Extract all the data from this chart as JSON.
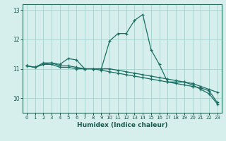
{
  "xlabel": "Humidex (Indice chaleur)",
  "xlim": [
    -0.5,
    23.5
  ],
  "ylim": [
    9.5,
    13.2
  ],
  "yticks": [
    10,
    11,
    12,
    13
  ],
  "xticks": [
    0,
    1,
    2,
    3,
    4,
    5,
    6,
    7,
    8,
    9,
    10,
    11,
    12,
    13,
    14,
    15,
    16,
    17,
    18,
    19,
    20,
    21,
    22,
    23
  ],
  "background_color": "#d6efed",
  "grid_color": "#a8d8d4",
  "line_color": "#1a6e62",
  "line1_x": [
    0,
    1,
    2,
    3,
    4,
    5,
    6,
    7,
    8,
    9,
    10,
    11,
    12,
    13,
    14,
    15,
    16,
    17,
    18,
    19,
    20,
    21,
    22,
    23
  ],
  "line1_y": [
    11.1,
    11.05,
    11.2,
    11.2,
    11.15,
    11.35,
    11.3,
    11.0,
    11.0,
    11.0,
    11.95,
    12.2,
    12.2,
    12.65,
    12.85,
    11.65,
    11.15,
    10.55,
    10.55,
    10.55,
    10.45,
    10.3,
    10.15,
    9.8
  ],
  "line2_x": [
    0,
    1,
    2,
    3,
    4,
    5,
    6,
    7,
    8,
    9,
    10,
    11,
    12,
    13,
    14,
    15,
    16,
    17,
    18,
    19,
    20,
    21,
    22,
    23
  ],
  "line2_y": [
    11.1,
    11.05,
    11.15,
    11.2,
    11.1,
    11.1,
    11.05,
    11.0,
    11.0,
    11.0,
    11.0,
    10.95,
    10.9,
    10.85,
    10.8,
    10.75,
    10.7,
    10.65,
    10.6,
    10.55,
    10.5,
    10.4,
    10.3,
    10.2
  ],
  "line3_x": [
    0,
    1,
    2,
    3,
    4,
    5,
    6,
    7,
    8,
    9,
    10,
    11,
    12,
    13,
    14,
    15,
    16,
    17,
    18,
    19,
    20,
    21,
    22,
    23
  ],
  "line3_y": [
    11.1,
    11.05,
    11.15,
    11.15,
    11.05,
    11.05,
    11.0,
    11.0,
    11.0,
    10.95,
    10.9,
    10.85,
    10.8,
    10.75,
    10.7,
    10.65,
    10.6,
    10.55,
    10.5,
    10.45,
    10.4,
    10.35,
    10.25,
    9.85
  ]
}
